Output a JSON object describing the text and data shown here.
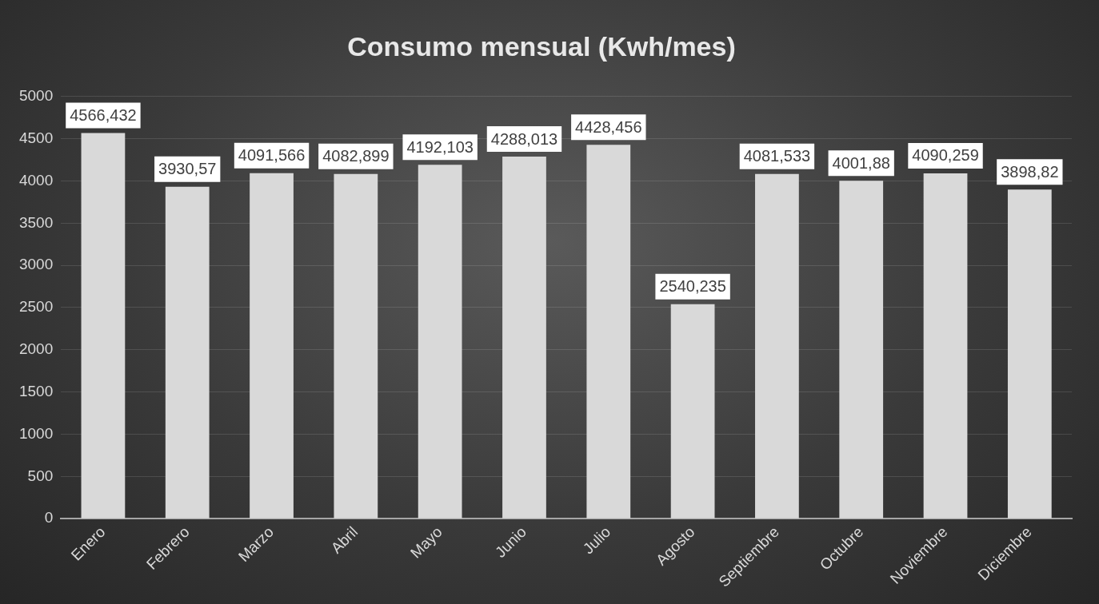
{
  "chart_data": {
    "type": "bar",
    "title": "Consumo mensual (Kwh/mes)",
    "categories": [
      "Enero",
      "Febrero",
      "Marzo",
      "Abril",
      "Mayo",
      "Junio",
      "Julio",
      "Agosto",
      "Septiembre",
      "Octubre",
      "Noviembre",
      "Diciembre"
    ],
    "values": [
      4566.432,
      3930.57,
      4091.566,
      4082.899,
      4192.103,
      4288.013,
      4428.456,
      2540.235,
      4081.533,
      4001.88,
      4090.259,
      3898.82
    ],
    "value_labels": [
      "4566,432",
      "3930,57",
      "4091,566",
      "4082,899",
      "4192,103",
      "4288,013",
      "4428,456",
      "2540,235",
      "4081,533",
      "4001,88",
      "4090,259",
      "3898,82"
    ],
    "color": "#d9d9d9",
    "ylim": [
      0,
      5000
    ],
    "yticks": [
      0,
      500,
      1000,
      1500,
      2000,
      2500,
      3000,
      3500,
      4000,
      4500,
      5000
    ],
    "grid": "y",
    "legend": false
  }
}
